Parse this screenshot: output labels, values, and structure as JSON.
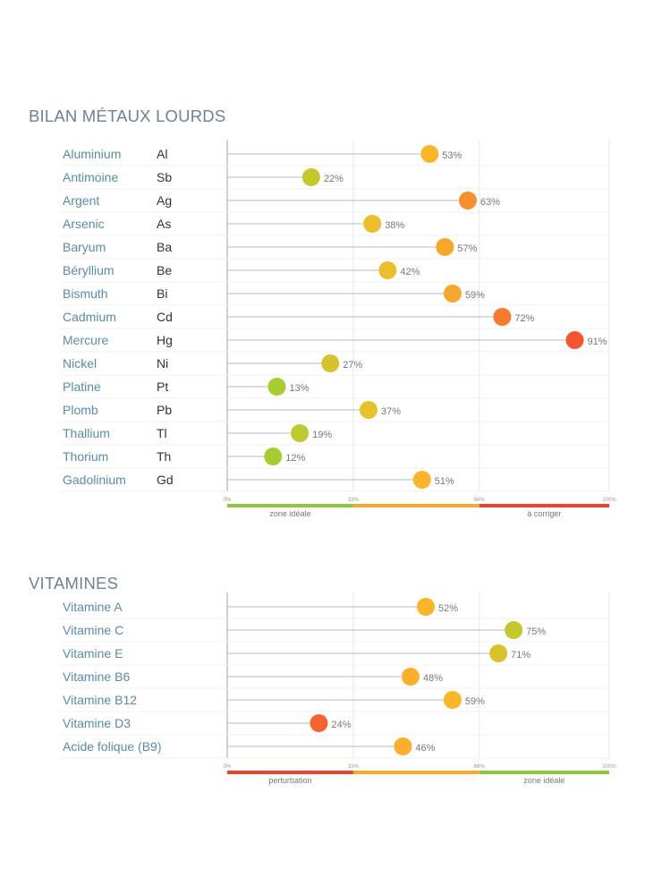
{
  "sections": {
    "metaux": {
      "title": "BILAN MÉTAUX LOURDS",
      "zone_left": "zone idéale",
      "zone_right": "à corriger"
    },
    "vitamines": {
      "title": "VITAMINES",
      "zone_left": "perturbation",
      "zone_right": "zone idéale"
    }
  },
  "chart_data": [
    {
      "type": "scatter",
      "title": "BILAN MÉTAUX LOURDS",
      "xlim": [
        0,
        100
      ],
      "ticks": [
        "0%",
        "33%",
        "66%",
        "100%"
      ],
      "scale_colors": [
        "#8cc63f",
        "#f7a928",
        "#e8442e"
      ],
      "zone_labels": [
        "zone idéale",
        "à corriger"
      ],
      "categories": [
        "Aluminium",
        "Antimoine",
        "Argent",
        "Arsenic",
        "Baryum",
        "Béryllium",
        "Bismuth",
        "Cadmium",
        "Mercure",
        "Nickel",
        "Platine",
        "Plomb",
        "Thallium",
        "Thorium",
        "Gadolinium"
      ],
      "symbols": [
        "Al",
        "Sb",
        "Ag",
        "As",
        "Ba",
        "Be",
        "Bi",
        "Cd",
        "Hg",
        "Ni",
        "Pt",
        "Pb",
        "Tl",
        "Th",
        "Gd"
      ],
      "values": [
        53,
        22,
        63,
        38,
        57,
        42,
        59,
        72,
        91,
        27,
        13,
        37,
        19,
        12,
        51
      ],
      "value_labels": [
        "53%",
        "22%",
        "63%",
        "38%",
        "57%",
        "42%",
        "59%",
        "72%",
        "91%",
        "27%",
        "13%",
        "37%",
        "19%",
        "12%",
        "51%"
      ],
      "colors": [
        "#fbb529",
        "#c6c62d",
        "#f78f2f",
        "#e8c02b",
        "#f9a72b",
        "#eabf2b",
        "#f7a72d",
        "#f67a30",
        "#f55630",
        "#d5c22d",
        "#a8cd2f",
        "#e4c32b",
        "#bdc92e",
        "#a6cd30",
        "#fbb42c"
      ]
    },
    {
      "type": "scatter",
      "title": "VITAMINES",
      "xlim": [
        0,
        100
      ],
      "ticks": [
        "0%",
        "33%",
        "66%",
        "100%"
      ],
      "scale_colors": [
        "#e8442e",
        "#f7a928",
        "#8cc63f"
      ],
      "zone_labels": [
        "perturbation",
        "zone idéale"
      ],
      "categories": [
        "Vitamine A",
        "Vitamine C",
        "Vitamine E",
        "Vitamine B6",
        "Vitamine B12",
        "Vitamine D3",
        "Acide folique (B9)"
      ],
      "values": [
        52,
        75,
        71,
        48,
        59,
        24,
        46
      ],
      "value_labels": [
        "52%",
        "75%",
        "71%",
        "48%",
        "59%",
        "24%",
        "46%"
      ],
      "colors": [
        "#fbb529",
        "#c6c62d",
        "#d9c12b",
        "#fbaf2b",
        "#fbb729",
        "#f5632f",
        "#fbae2b"
      ]
    }
  ]
}
